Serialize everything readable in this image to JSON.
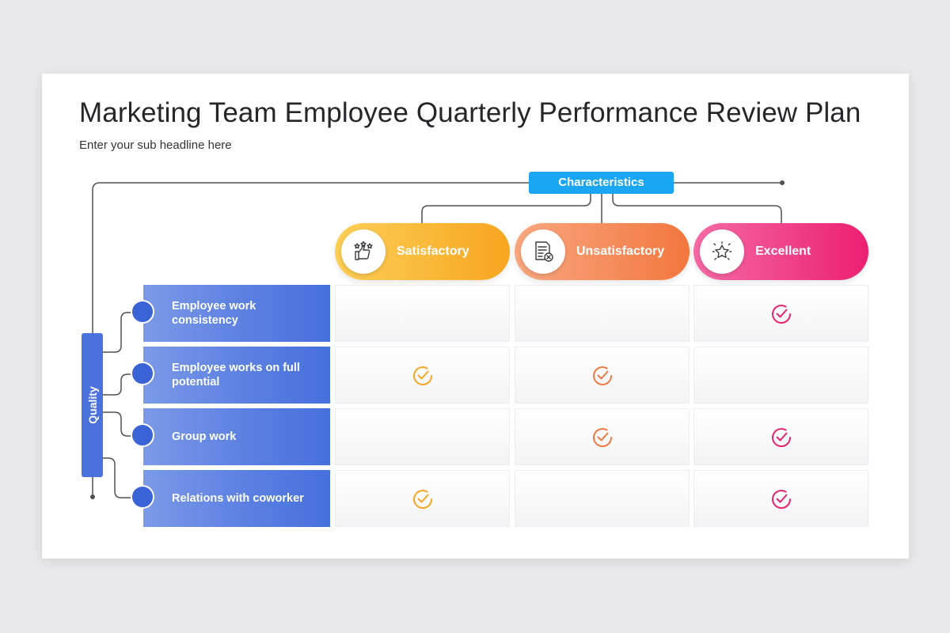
{
  "title": "Marketing Team Employee Quarterly Performance Review Plan",
  "subtitle": "Enter your sub headline here",
  "characteristics_label": "Characteristics",
  "quality_label": "Quality",
  "columns": [
    {
      "label": "Satisfactory",
      "icon": "thumbs-up-stars-icon",
      "color": "#f5a623"
    },
    {
      "label": "Unsatisfactory",
      "icon": "document-x-icon",
      "color": "#ef7a45"
    },
    {
      "label": "Excellent",
      "icon": "star-icon",
      "color": "#e8236e"
    }
  ],
  "rows": [
    {
      "label": "Employee work consistency",
      "checks": [
        false,
        false,
        true
      ]
    },
    {
      "label": "Employee works on full potential",
      "checks": [
        true,
        true,
        false
      ]
    },
    {
      "label": "Group work",
      "checks": [
        false,
        true,
        true
      ]
    },
    {
      "label": "Relations with coworker",
      "checks": [
        true,
        false,
        true
      ]
    }
  ],
  "colors": {
    "accent_blue": "#1aa6f2",
    "row_blue": "#4670dc",
    "connector": "#505055"
  }
}
